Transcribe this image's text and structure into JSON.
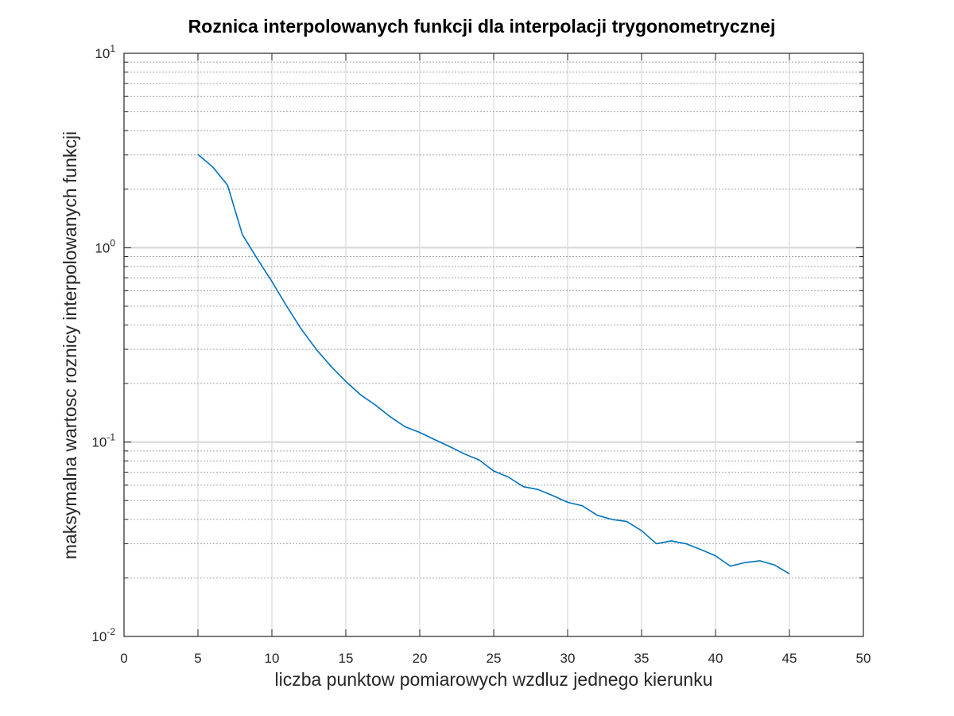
{
  "chart_data": {
    "type": "line",
    "title": "Roznica interpolowanych funkcji dla interpolacji trygonometrycznej",
    "xlabel": "liczba punktow pomiarowych wzdluz jednego kierunku",
    "ylabel": "maksymalna wartosc roznicy interpolowanych funkcji",
    "xlim": [
      0,
      50
    ],
    "ylim": [
      0.01,
      10
    ],
    "yscale": "log",
    "grid": true,
    "minor_grid_y": true,
    "x_ticks": [
      0,
      5,
      10,
      15,
      20,
      25,
      30,
      35,
      40,
      45,
      50
    ],
    "x_tick_labels": [
      "0",
      "5",
      "10",
      "15",
      "20",
      "25",
      "30",
      "35",
      "40",
      "45",
      "50"
    ],
    "y_ticks": [
      {
        "value": 0.01,
        "base": "10",
        "exp": "-2"
      },
      {
        "value": 0.1,
        "base": "10",
        "exp": "-1"
      },
      {
        "value": 1,
        "base": "10",
        "exp": "0"
      },
      {
        "value": 10,
        "base": "10",
        "exp": "1"
      }
    ],
    "line_color": "#0072bd",
    "series": [
      {
        "x": [
          5,
          6,
          7,
          8,
          9,
          10,
          11,
          12,
          13,
          14,
          15,
          16,
          17,
          18,
          19,
          20,
          21,
          22,
          23,
          24,
          25,
          26,
          27,
          28,
          29,
          30,
          31,
          32,
          33,
          34,
          35,
          36,
          37,
          38,
          39,
          40,
          41,
          42,
          43,
          44,
          45
        ],
        "values": [
          3.02,
          2.6,
          2.1,
          1.17,
          0.88,
          0.67,
          0.5,
          0.38,
          0.3,
          0.245,
          0.205,
          0.175,
          0.155,
          0.135,
          0.12,
          0.112,
          0.103,
          0.095,
          0.087,
          0.081,
          0.071,
          0.066,
          0.059,
          0.057,
          0.053,
          0.049,
          0.047,
          0.042,
          0.04,
          0.039,
          0.035,
          0.03,
          0.031,
          0.03,
          0.028,
          0.026,
          0.023,
          0.024,
          0.0245,
          0.0233,
          0.021
        ]
      }
    ]
  }
}
